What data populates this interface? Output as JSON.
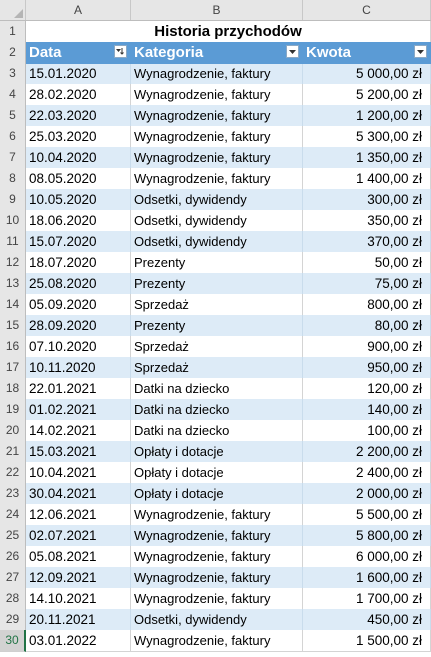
{
  "columns": {
    "row_corner": "",
    "a": "A",
    "b": "B",
    "c": "C"
  },
  "row_numbers": [
    "1",
    "2",
    "3",
    "4",
    "5",
    "6",
    "7",
    "8",
    "9",
    "10",
    "11",
    "12",
    "13",
    "14",
    "15",
    "16",
    "17",
    "18",
    "19",
    "20",
    "21",
    "22",
    "23",
    "24",
    "25",
    "26",
    "27",
    "28",
    "29",
    "30"
  ],
  "title": "Historia przychodów",
  "headers": {
    "date": "Data",
    "category": "Kategoria",
    "amount": "Kwota"
  },
  "rows": [
    {
      "date": "15.01.2020",
      "category": "Wynagrodzenie, faktury",
      "amount": "5 000,00 zł"
    },
    {
      "date": "28.02.2020",
      "category": "Wynagrodzenie, faktury",
      "amount": "5 200,00 zł"
    },
    {
      "date": "22.03.2020",
      "category": "Wynagrodzenie, faktury",
      "amount": "1 200,00 zł"
    },
    {
      "date": "25.03.2020",
      "category": "Wynagrodzenie, faktury",
      "amount": "5 300,00 zł"
    },
    {
      "date": "10.04.2020",
      "category": "Wynagrodzenie, faktury",
      "amount": "1 350,00 zł"
    },
    {
      "date": "08.05.2020",
      "category": "Wynagrodzenie, faktury",
      "amount": "1 400,00 zł"
    },
    {
      "date": "10.05.2020",
      "category": "Odsetki, dywidendy",
      "amount": "300,00 zł"
    },
    {
      "date": "18.06.2020",
      "category": "Odsetki, dywidendy",
      "amount": "350,00 zł"
    },
    {
      "date": "15.07.2020",
      "category": "Odsetki, dywidendy",
      "amount": "370,00 zł"
    },
    {
      "date": "18.07.2020",
      "category": "Prezenty",
      "amount": "50,00 zł"
    },
    {
      "date": "25.08.2020",
      "category": "Prezenty",
      "amount": "75,00 zł"
    },
    {
      "date": "05.09.2020",
      "category": "Sprzedaż",
      "amount": "800,00 zł"
    },
    {
      "date": "28.09.2020",
      "category": "Prezenty",
      "amount": "80,00 zł"
    },
    {
      "date": "07.10.2020",
      "category": "Sprzedaż",
      "amount": "900,00 zł"
    },
    {
      "date": "10.11.2020",
      "category": "Sprzedaż",
      "amount": "950,00 zł"
    },
    {
      "date": "22.01.2021",
      "category": "Datki na dziecko",
      "amount": "120,00 zł"
    },
    {
      "date": "01.02.2021",
      "category": "Datki na dziecko",
      "amount": "140,00 zł"
    },
    {
      "date": "14.02.2021",
      "category": "Datki na dziecko",
      "amount": "100,00 zł"
    },
    {
      "date": "15.03.2021",
      "category": "Opłaty i dotacje",
      "amount": "2 200,00 zł"
    },
    {
      "date": "10.04.2021",
      "category": "Opłaty i dotacje",
      "amount": "2 400,00 zł"
    },
    {
      "date": "30.04.2021",
      "category": "Opłaty i dotacje",
      "amount": "2 000,00 zł"
    },
    {
      "date": "12.06.2021",
      "category": "Wynagrodzenie, faktury",
      "amount": "5 500,00 zł"
    },
    {
      "date": "02.07.2021",
      "category": "Wynagrodzenie, faktury",
      "amount": "5 800,00 zł"
    },
    {
      "date": "05.08.2021",
      "category": "Wynagrodzenie, faktury",
      "amount": "6 000,00 zł"
    },
    {
      "date": "12.09.2021",
      "category": "Wynagrodzenie, faktury",
      "amount": "1 600,00 zł"
    },
    {
      "date": "14.10.2021",
      "category": "Wynagrodzenie, faktury",
      "amount": "1 700,00 zł"
    },
    {
      "date": "20.11.2021",
      "category": "Odsetki, dywidendy",
      "amount": "450,00 zł"
    },
    {
      "date": "03.01.2022",
      "category": "Wynagrodzenie, faktury",
      "amount": "1 500,00 zł"
    }
  ],
  "colors": {
    "header_bg": "#5b9bd5",
    "band_bg": "#ddebf7",
    "selected_row_accent": "#217346"
  },
  "icons": {
    "filter": "filter-dropdown-icon",
    "select_all": "select-all-corner-icon"
  }
}
